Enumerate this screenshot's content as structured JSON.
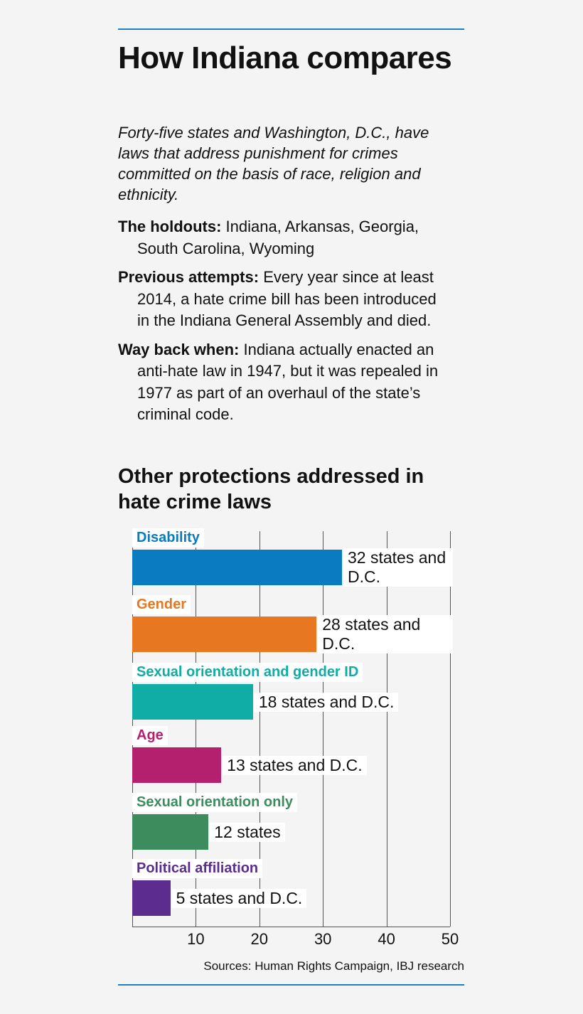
{
  "header": {
    "title": "How Indiana compares",
    "subtitle": "Forty-five states and Washington, D.C., have laws that address punishment for crimes committed on the basis of race, religion and ethnicity."
  },
  "notes": [
    {
      "label": "The holdouts:",
      "text": "Indiana, Arkansas, Georgia, South Carolina, Wyoming"
    },
    {
      "label": "Previous attempts:",
      "text": "Every year since at least 2014, a hate crime bill has been introduced in the Indiana General Assembly and died."
    },
    {
      "label": "Way back when:",
      "text": "Indiana actually enacted an anti-hate law in 1947, but it was repealed in 1977 as part of an overhaul of the state’s criminal code."
    }
  ],
  "chart_data": {
    "type": "hbar",
    "title": "Other protections addressed in hate crime laws",
    "categories": [
      "Disability",
      "Gender",
      "Sexual orientation and gender ID",
      "Age",
      "Sexual orientation only",
      "Political affiliation"
    ],
    "values": [
      33,
      29,
      19,
      14,
      12,
      6
    ],
    "annotations": [
      "32 states and D.C.",
      "28 states and D.C.",
      "18 states and D.C.",
      "13 states and D.C.",
      "12 states",
      "5 states and D.C."
    ],
    "colors": [
      "#0a7bc1",
      "#e87722",
      "#10aca6",
      "#b5206e",
      "#3d8c5e",
      "#5c2d8f"
    ],
    "xlim": [
      0,
      50
    ],
    "xticks": [
      10,
      20,
      30,
      40,
      50
    ],
    "grid": true,
    "source": "Sources: Human Rights Campaign, IBJ research"
  }
}
